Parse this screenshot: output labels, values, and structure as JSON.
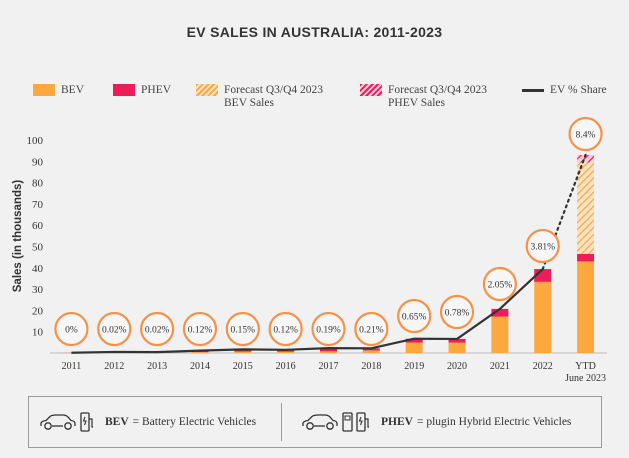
{
  "title": "EV SALES IN AUSTRALIA: 2011-2023",
  "colors": {
    "bev": "#fba83f",
    "phev": "#ee1c5a",
    "forecast_bev": "#fba83f",
    "forecast_phev": "#ee1c5a",
    "share_line": "#333333",
    "circle_border": "#f5924a"
  },
  "legend": {
    "bev": "BEV",
    "phev": "PHEV",
    "forecast_bev_line1": "Forecast Q3/Q4 2023",
    "forecast_bev_line2": "BEV Sales",
    "forecast_phev_line1": "Forecast Q3/Q4 2023",
    "forecast_phev_line2": "PHEV Sales",
    "share": "EV % Share"
  },
  "footer": {
    "bev_abbr": "BEV",
    "bev_text": "= Battery Electric Vehicles",
    "phev_abbr": "PHEV",
    "phev_text": "= plugin Hybrid Electric Vehicles",
    "icons": [
      "car-icon",
      "charger-icon",
      "fuel-pump-icon"
    ]
  },
  "chart_data": {
    "type": "bar",
    "ylabel": "Sales (in thousands)",
    "ylim": [
      0,
      100
    ],
    "yticks": [
      10,
      20,
      30,
      40,
      50,
      60,
      70,
      80,
      90,
      100
    ],
    "grid": false,
    "legend_position": "top",
    "categories": [
      "2011",
      "2012",
      "2013",
      "2014",
      "2015",
      "2016",
      "2017",
      "2018",
      "2019",
      "2020",
      "2021",
      "2022",
      "YTD|June 2023"
    ],
    "series": [
      {
        "name": "BEV",
        "values": [
          0.05,
          0.25,
          0.2,
          0.4,
          0.7,
          0.6,
          0.8,
          1.2,
          4.9,
          4.9,
          17.1,
          33.4,
          43.0
        ]
      },
      {
        "name": "PHEV",
        "values": [
          0.05,
          0.25,
          0.2,
          0.7,
          1.0,
          0.9,
          1.5,
          1.0,
          1.8,
          1.7,
          3.6,
          6.0,
          3.5
        ]
      },
      {
        "name": "Forecast Q3/Q4 2023 BEV Sales",
        "values": [
          0,
          0,
          0,
          0,
          0,
          0,
          0,
          0,
          0,
          0,
          0,
          0,
          43.0
        ]
      },
      {
        "name": "Forecast Q3/Q4 2023 PHEV Sales",
        "values": [
          0,
          0,
          0,
          0,
          0,
          0,
          0,
          0,
          0,
          0,
          0,
          0,
          3.5
        ]
      }
    ],
    "share_labels": [
      "0%",
      "0.02%",
      "0.02%",
      "0.12%",
      "0.15%",
      "0.12%",
      "0.19%",
      "0.21%",
      "0.65%",
      "0.78%",
      "2.05%",
      "3.81%",
      "8.4%"
    ],
    "share_line_name": "EV % Share"
  }
}
